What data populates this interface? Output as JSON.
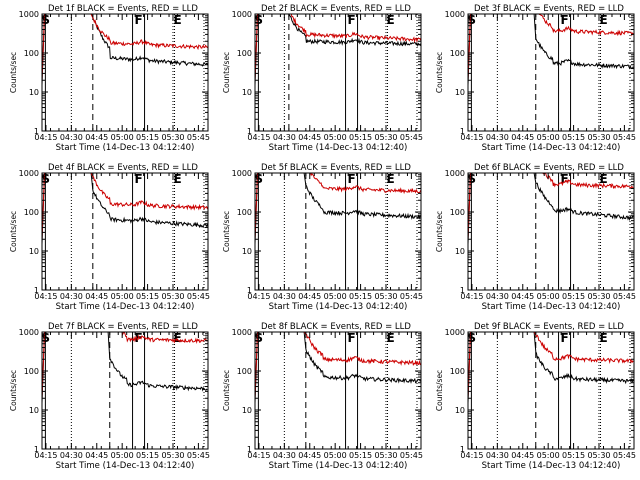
{
  "figure": {
    "background": "#ffffff",
    "colors": {
      "events": "#000000",
      "lld": "#cc0000",
      "axis": "#000000"
    },
    "x_tick_labels": [
      "04:15",
      "04:30",
      "04:45",
      "05:00",
      "05:15",
      "05:30",
      "05:45"
    ],
    "y_tick_labels": [
      "1",
      "10",
      "100",
      "1000"
    ],
    "ylabel": "Counts/sec",
    "xlabel": "Start Time (14-Dec-13 04:12:40)"
  },
  "chart_data": [
    {
      "type": "line",
      "title": "Det 1f BLACK = Events, RED = LLD",
      "xlabel": "Start Time (14-Dec-13 04:12:40)",
      "ylabel": "Counts/sec",
      "x_axis": "time (minutes after 04:12:40)",
      "xlim": [
        0,
        98
      ],
      "ylim": [
        1,
        1000
      ],
      "ylog": true,
      "rise_minute": 30,
      "markers": [
        {
          "label": "S",
          "minute": 2
        },
        {
          "label": "F",
          "minute": 57
        },
        {
          "label": "E",
          "minute": 80
        }
      ],
      "series": [
        {
          "name": "Events",
          "color": "#000000",
          "start": 200,
          "plateau": 75,
          "end": 50
        },
        {
          "name": "LLD",
          "color": "#cc0000",
          "start": 200,
          "plateau": 180,
          "end": 140
        }
      ]
    },
    {
      "type": "line",
      "title": "Det 2f BLACK = Events, RED = LLD",
      "xlabel": "Start Time (14-Dec-13 04:12:40)",
      "ylabel": "Counts/sec",
      "x_axis": "time (minutes after 04:12:40)",
      "xlim": [
        0,
        98
      ],
      "ylim": [
        1,
        1000
      ],
      "ylog": true,
      "rise_minute": 20,
      "markers": [
        {
          "label": "S",
          "minute": 2
        },
        {
          "label": "F",
          "minute": 57
        },
        {
          "label": "E",
          "minute": 80
        }
      ],
      "series": [
        {
          "name": "Events",
          "color": "#000000",
          "start": 250,
          "plateau": 200,
          "end": 170
        },
        {
          "name": "LLD",
          "color": "#cc0000",
          "start": 300,
          "plateau": 300,
          "end": 220
        }
      ]
    },
    {
      "type": "line",
      "title": "Det 3f BLACK = Events, RED = LLD",
      "xlabel": "Start Time (14-Dec-13 04:12:40)",
      "ylabel": "Counts/sec",
      "x_axis": "time (minutes after 04:12:40)",
      "xlim": [
        0,
        98
      ],
      "ylim": [
        1,
        1000
      ],
      "ylog": true,
      "rise_minute": 40,
      "markers": [
        {
          "label": "S",
          "minute": 2
        },
        {
          "label": "F",
          "minute": 57
        },
        {
          "label": "E",
          "minute": 80
        }
      ],
      "series": [
        {
          "name": "Events",
          "color": "#000000",
          "start": 60,
          "plateau": 55,
          "end": 45
        },
        {
          "name": "LLD",
          "color": "#cc0000",
          "start": 400,
          "plateau": 370,
          "end": 320
        }
      ]
    },
    {
      "type": "line",
      "title": "Det 4f BLACK = Events, RED = LLD",
      "xlabel": "Start Time (14-Dec-13 04:12:40)",
      "ylabel": "Counts/sec",
      "x_axis": "time (minutes after 04:12:40)",
      "xlim": [
        0,
        98
      ],
      "ylim": [
        1,
        1000
      ],
      "ylog": true,
      "rise_minute": 30,
      "markers": [
        {
          "label": "S",
          "minute": 2
        },
        {
          "label": "F",
          "minute": 57
        },
        {
          "label": "E",
          "minute": 80
        }
      ],
      "series": [
        {
          "name": "Events",
          "color": "#000000",
          "start": 90,
          "plateau": 65,
          "end": 45
        },
        {
          "name": "LLD",
          "color": "#cc0000",
          "start": 200,
          "plateau": 160,
          "end": 130
        }
      ]
    },
    {
      "type": "line",
      "title": "Det 5f BLACK = Events, RED = LLD",
      "xlabel": "Start Time (14-Dec-13 04:12:40)",
      "ylabel": "Counts/sec",
      "x_axis": "time (minutes after 04:12:40)",
      "xlim": [
        0,
        98
      ],
      "ylim": [
        1,
        1000
      ],
      "ylog": true,
      "rise_minute": 30,
      "markers": [
        {
          "label": "S",
          "minute": 2
        },
        {
          "label": "F",
          "minute": 57
        },
        {
          "label": "E",
          "minute": 80
        }
      ],
      "series": [
        {
          "name": "Events",
          "color": "#000000",
          "start": 120,
          "plateau": 100,
          "end": 75
        },
        {
          "name": "LLD",
          "color": "#cc0000",
          "start": 420,
          "plateau": 400,
          "end": 340
        }
      ]
    },
    {
      "type": "line",
      "title": "Det 6f BLACK = Events, RED = LLD",
      "xlabel": "Start Time (14-Dec-13 04:12:40)",
      "ylabel": "Counts/sec",
      "x_axis": "time (minutes after 04:12:40)",
      "xlim": [
        0,
        98
      ],
      "ylim": [
        1,
        1000
      ],
      "ylog": true,
      "rise_minute": 40,
      "markers": [
        {
          "label": "S",
          "minute": 2
        },
        {
          "label": "F",
          "minute": 57
        },
        {
          "label": "E",
          "minute": 80
        }
      ],
      "series": [
        {
          "name": "Events",
          "color": "#000000",
          "start": 150,
          "plateau": 110,
          "end": 70
        },
        {
          "name": "LLD",
          "color": "#cc0000",
          "start": 560,
          "plateau": 520,
          "end": 450
        }
      ]
    },
    {
      "type": "line",
      "title": "Det 7f BLACK = Events, RED = LLD",
      "xlabel": "Start Time (14-Dec-13 04:12:40)",
      "ylabel": "Counts/sec",
      "x_axis": "time (minutes after 04:12:40)",
      "xlim": [
        0,
        98
      ],
      "ylim": [
        1,
        1000
      ],
      "ylog": true,
      "rise_minute": 40,
      "markers": [
        {
          "label": "S",
          "minute": 2
        },
        {
          "label": "F",
          "minute": 57
        },
        {
          "label": "E",
          "minute": 80
        }
      ],
      "series": [
        {
          "name": "Events",
          "color": "#000000",
          "start": 55,
          "plateau": 45,
          "end": 35
        },
        {
          "name": "LLD",
          "color": "#cc0000",
          "start": 700,
          "plateau": 650,
          "end": 600
        }
      ]
    },
    {
      "type": "line",
      "title": "Det 8f BLACK = Events, RED = LLD",
      "xlabel": "Start Time (14-Dec-13 04:12:40)",
      "ylabel": "Counts/sec",
      "x_axis": "time (minutes after 04:12:40)",
      "xlim": [
        0,
        98
      ],
      "ylim": [
        1,
        1000
      ],
      "ylog": true,
      "rise_minute": 30,
      "markers": [
        {
          "label": "S",
          "minute": 2
        },
        {
          "label": "F",
          "minute": 57
        },
        {
          "label": "E",
          "minute": 80
        }
      ],
      "series": [
        {
          "name": "Events",
          "color": "#000000",
          "start": 90,
          "plateau": 70,
          "end": 55
        },
        {
          "name": "LLD",
          "color": "#cc0000",
          "start": 230,
          "plateau": 200,
          "end": 160
        }
      ]
    },
    {
      "type": "line",
      "title": "Det 9f BLACK = Events, RED = LLD",
      "xlabel": "Start Time (14-Dec-13 04:12:40)",
      "ylabel": "Counts/sec",
      "x_axis": "time (minutes after 04:12:40)",
      "xlim": [
        0,
        98
      ],
      "ylim": [
        1,
        1000
      ],
      "ylog": true,
      "rise_minute": 40,
      "markers": [
        {
          "label": "S",
          "minute": 2
        },
        {
          "label": "F",
          "minute": 57
        },
        {
          "label": "E",
          "minute": 80
        }
      ],
      "series": [
        {
          "name": "Events",
          "color": "#000000",
          "start": 70,
          "plateau": 65,
          "end": 55
        },
        {
          "name": "LLD",
          "color": "#cc0000",
          "start": 230,
          "plateau": 210,
          "end": 180
        }
      ]
    }
  ]
}
